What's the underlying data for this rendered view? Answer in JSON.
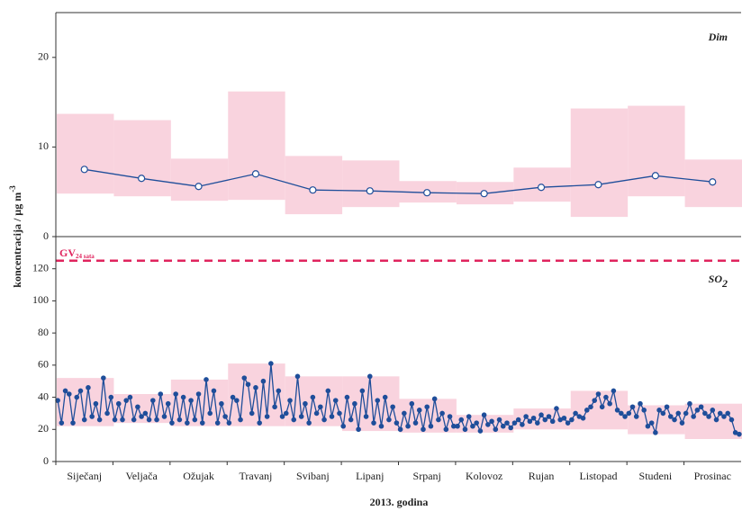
{
  "chart_data": {
    "type": "range_line",
    "x_label": "2013. godina",
    "y_label": "koncentracija / µg m",
    "y_label_sup": "-3",
    "categories": [
      "Siječanj",
      "Veljača",
      "Ožujak",
      "Travanj",
      "Svibanj",
      "Lipanj",
      "Srpanj",
      "Kolovoz",
      "Rujan",
      "Listopad",
      "Studeni",
      "Prosinac"
    ],
    "panels": [
      {
        "label": "Dim",
        "ylim": [
          0,
          25
        ],
        "yticks": [
          0,
          10,
          20
        ],
        "range_color": "#f9d3de",
        "color": "#1f4e9a",
        "marker": "open",
        "min": [
          4.8,
          4.5,
          4.0,
          4.1,
          2.5,
          3.3,
          3.8,
          3.6,
          3.9,
          2.2,
          4.5,
          3.3
        ],
        "max": [
          13.7,
          13.0,
          8.7,
          16.2,
          9.0,
          8.5,
          6.2,
          6.1,
          7.7,
          14.3,
          14.6,
          8.6
        ],
        "values": [
          7.5,
          6.5,
          5.6,
          7.0,
          5.2,
          5.1,
          4.9,
          4.8,
          5.5,
          5.8,
          6.8,
          6.1
        ]
      },
      {
        "label": "SO",
        "label_sub": "2",
        "ylim": [
          0,
          140
        ],
        "yticks": [
          0,
          20,
          40,
          60,
          80,
          100,
          120
        ],
        "range_color": "#f9d3de",
        "color": "#1f4e9a",
        "marker": "filled",
        "threshold": 125,
        "threshold_label": "GV",
        "threshold_sub": "24 sata",
        "threshold_color": "#e0245e",
        "min": [
          22,
          24,
          22,
          22,
          22,
          19,
          18,
          18,
          20,
          20,
          17,
          14
        ],
        "max": [
          52,
          42,
          51,
          61,
          53,
          53,
          39,
          29,
          33,
          44,
          35,
          36
        ],
        "values": [
          38,
          24,
          44,
          42,
          24,
          40,
          44,
          26,
          46,
          28,
          36,
          26,
          52,
          30,
          40,
          26,
          36,
          26,
          38,
          40,
          26,
          34,
          28,
          30,
          26,
          38,
          26,
          42,
          28,
          36,
          24,
          42,
          26,
          40,
          24,
          38,
          26,
          42,
          24,
          51,
          30,
          44,
          24,
          36,
          28,
          24,
          40,
          38,
          26,
          52,
          48,
          30,
          46,
          24,
          50,
          28,
          61,
          34,
          44,
          28,
          30,
          38,
          26,
          53,
          28,
          36,
          24,
          40,
          30,
          34,
          26,
          44,
          28,
          38,
          30,
          22,
          40,
          26,
          36,
          20,
          44,
          28,
          53,
          24,
          38,
          22,
          40,
          26,
          34,
          24,
          20,
          30,
          22,
          36,
          24,
          32,
          20,
          34,
          22,
          39,
          26,
          30,
          20,
          28,
          22,
          22,
          26,
          20,
          28,
          22,
          24,
          19,
          29,
          23,
          25,
          20,
          26,
          22,
          24,
          21,
          24,
          26,
          23,
          28,
          25,
          27,
          24,
          29,
          26,
          28,
          25,
          33,
          26,
          27,
          24,
          26,
          30,
          28,
          27,
          32,
          34,
          38,
          42,
          34,
          40,
          36,
          44,
          32,
          30,
          28,
          30,
          34,
          28,
          36,
          32,
          22,
          24,
          18,
          32,
          30,
          34,
          28,
          26,
          30,
          24,
          30,
          36,
          28,
          32,
          34,
          30,
          28,
          32,
          26,
          30,
          28,
          30,
          26,
          18,
          17
        ]
      }
    ]
  }
}
